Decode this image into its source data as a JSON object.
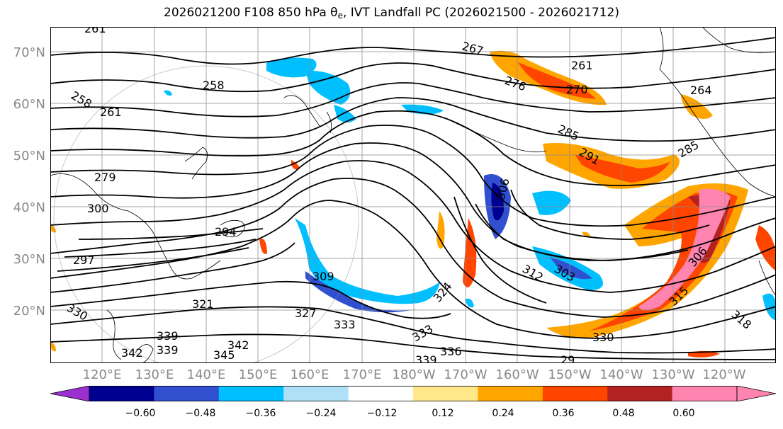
{
  "title_text": "2026021200 F108 850 hPa θ",
  "title_sub": "e",
  "title_rest": ", IVT Landfall PC (2026021500 - 2026021712)",
  "lat_labels": [
    "70°N",
    "60°N",
    "50°N",
    "40°N",
    "30°N",
    "20°N"
  ],
  "lon_labels": [
    "120°E",
    "130°E",
    "140°E",
    "150°E",
    "160°E",
    "170°E",
    "180°W",
    "170°W",
    "160°W",
    "150°W",
    "140°W",
    "130°W",
    "120°W"
  ],
  "contour_labels": [
    "261",
    "258",
    "258",
    "261",
    "279",
    "297",
    "294",
    "300",
    "309",
    "321",
    "330",
    "327",
    "333",
    "339",
    "339",
    "342",
    "342",
    "345",
    "339",
    "336",
    "333",
    "324",
    "303",
    "312",
    "306",
    "267",
    "276",
    "261",
    "270",
    "264",
    "285",
    "291",
    "285",
    "306",
    "315",
    "318",
    "330",
    "29"
  ],
  "colorbar": {
    "ticks": [
      "−0.60",
      "−0.48",
      "−0.36",
      "−0.24",
      "−0.12",
      "0.12",
      "0.24",
      "0.36",
      "0.48",
      "0.60"
    ],
    "colors": [
      "#9b30d0",
      "#000090",
      "#3050d0",
      "#00bfff",
      "#aee0f8",
      "#ffffff",
      "#ffe88a",
      "#ffa500",
      "#ff4500",
      "#b22222",
      "#ff85b0",
      "#ff85b0"
    ]
  },
  "colors": {
    "land_outline": "#000000",
    "grid": "#888888",
    "contour": "#000000"
  }
}
